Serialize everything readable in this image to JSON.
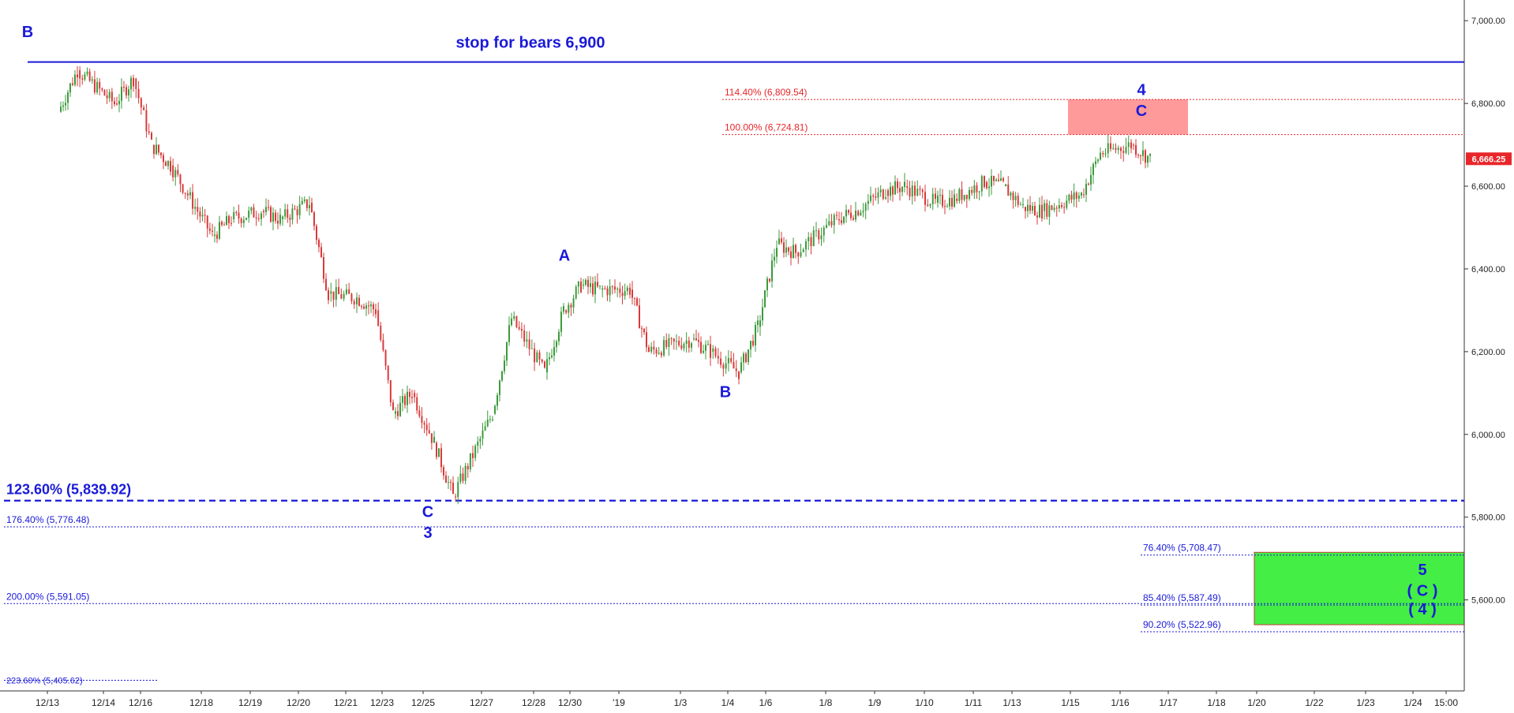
{
  "chart_data": {
    "type": "candlestick",
    "title": "",
    "xlabel": "",
    "ylabel": "",
    "ylim": [
      5380,
      7050
    ],
    "y_ticks": [
      {
        "value": 7000,
        "label": "7,000.00"
      },
      {
        "value": 6800,
        "label": "6,800.00"
      },
      {
        "value": 6600,
        "label": "6,600.00"
      },
      {
        "value": 6400,
        "label": "6,400.00"
      },
      {
        "value": 6200,
        "label": "6,200.00"
      },
      {
        "value": 6000,
        "label": "6,000.00"
      },
      {
        "value": 5800,
        "label": "5,800.00"
      },
      {
        "value": 5600,
        "label": "5,600.00"
      }
    ],
    "x_ticks": [
      "12/13",
      "12/14",
      "12/16",
      "12/18",
      "12/19",
      "12/20",
      "12/21",
      "12/23",
      "12/25",
      "12/27",
      "12/28",
      "12/30",
      "'19",
      "1/3",
      "1/4",
      "1/6",
      "1/8",
      "1/9",
      "1/10",
      "1/11",
      "1/13",
      "1/15",
      "1/16",
      "1/17",
      "1/18",
      "1/20",
      "1/22",
      "1/23",
      "1/24",
      "15:00"
    ],
    "last_price": {
      "value": 6666.25,
      "label": "6,666.25",
      "color": "#e8262a"
    },
    "price_path": [
      {
        "x": "12/13",
        "y": 6780
      },
      {
        "x": "12/13",
        "y": 6880
      },
      {
        "x": "12/14",
        "y": 6800
      },
      {
        "x": "12/14",
        "y": 6860
      },
      {
        "x": "12/16",
        "y": 6700
      },
      {
        "x": "12/16",
        "y": 6650
      },
      {
        "x": "12/18",
        "y": 6480
      },
      {
        "x": "12/18",
        "y": 6520
      },
      {
        "x": "12/19",
        "y": 6540
      },
      {
        "x": "12/19",
        "y": 6520
      },
      {
        "x": "12/20",
        "y": 6560
      },
      {
        "x": "12/20",
        "y": 6340
      },
      {
        "x": "12/21",
        "y": 6330
      },
      {
        "x": "12/21",
        "y": 6300
      },
      {
        "x": "12/23",
        "y": 6050
      },
      {
        "x": "12/23",
        "y": 6100
      },
      {
        "x": "12/25",
        "y": 5980
      },
      {
        "x": "12/25",
        "y": 5850
      },
      {
        "x": "12/27",
        "y": 6050
      },
      {
        "x": "12/27",
        "y": 6280
      },
      {
        "x": "12/28",
        "y": 6150
      },
      {
        "x": "12/28",
        "y": 6300
      },
      {
        "x": "12/30",
        "y": 6360
      },
      {
        "x": "12/30",
        "y": 6350
      },
      {
        "x": "'19",
        "y": 6350
      },
      {
        "x": "'19",
        "y": 6200
      },
      {
        "x": "1/3",
        "y": 6230
      },
      {
        "x": "1/3",
        "y": 6200
      },
      {
        "x": "1/4",
        "y": 6150
      },
      {
        "x": "1/4",
        "y": 6260
      },
      {
        "x": "1/6",
        "y": 6460
      },
      {
        "x": "1/6",
        "y": 6440
      },
      {
        "x": "1/8",
        "y": 6520
      },
      {
        "x": "1/8",
        "y": 6540
      },
      {
        "x": "1/9",
        "y": 6590
      },
      {
        "x": "1/9",
        "y": 6600
      },
      {
        "x": "1/10",
        "y": 6560
      },
      {
        "x": "1/10",
        "y": 6570
      },
      {
        "x": "1/11",
        "y": 6610
      },
      {
        "x": "1/11",
        "y": 6600
      },
      {
        "x": "1/13",
        "y": 6550
      },
      {
        "x": "1/13",
        "y": 6540
      },
      {
        "x": "1/15",
        "y": 6580
      },
      {
        "x": "1/15",
        "y": 6680
      },
      {
        "x": "1/16",
        "y": 6700
      },
      {
        "x": "1/16",
        "y": 6666.25
      }
    ],
    "overlay_lines": [
      {
        "value": 6900,
        "style": "solid",
        "color": "#1a1ad8",
        "label": "stop for bears 6,900"
      },
      {
        "value": 6809.54,
        "style": "dotted",
        "color": "#e8262a",
        "label": "114.40% (6,809.54)"
      },
      {
        "value": 6724.81,
        "style": "dotted",
        "color": "#e8262a",
        "label": "100.00% (6,724.81)"
      },
      {
        "value": 5839.92,
        "style": "dashed-bold",
        "color": "#1a1ad8",
        "label": "123.60% (5,839.92)"
      },
      {
        "value": 5776.48,
        "style": "dotted",
        "color": "#1a1ad8",
        "label": "176.40% (5,776.48)"
      },
      {
        "value": 5591.05,
        "style": "dotted",
        "color": "#1a1ad8",
        "label": "200.00% (5,591.05)"
      },
      {
        "value": 5708.47,
        "style": "dotted",
        "color": "#1a1ad8",
        "label": "76.40% (5,708.47)"
      },
      {
        "value": 5587.49,
        "style": "dotted",
        "color": "#1a1ad8",
        "label": "85.40% (5,587.49)"
      },
      {
        "value": 5522.96,
        "style": "dotted",
        "color": "#1a1ad8",
        "label": "90.20% (5,522.96)"
      },
      {
        "value": 5405.62,
        "style": "dotted",
        "color": "#1a1ad8",
        "label": "223.60% (5,405.62)"
      }
    ],
    "zones": [
      {
        "name": "target-zone-4",
        "from_x": "1/15",
        "to_x": "1/17",
        "y_low": 6724.81,
        "y_high": 6809.54,
        "color": "#ff9a9a"
      },
      {
        "name": "target-zone-5",
        "from_x": "1/20",
        "to_x": "15:00",
        "y_low": 5540,
        "y_high": 5715,
        "color": "#44ee44"
      }
    ],
    "wave_labels": [
      {
        "text": "B",
        "x": "12/13",
        "y": 6960
      },
      {
        "text": "A",
        "x": "12/30",
        "y": 6420
      },
      {
        "text": "B",
        "x": "1/4",
        "y": 6090
      },
      {
        "text": "C",
        "x": "12/25",
        "y": 5800
      },
      {
        "text": "3",
        "x": "12/25",
        "y": 5750
      },
      {
        "text": "4",
        "x": "1/16",
        "y": 6820
      },
      {
        "text": "C",
        "x": "1/16",
        "y": 6770
      },
      {
        "text": "5",
        "x": "1/24",
        "y": 5660
      },
      {
        "text": "( C )",
        "x": "1/24",
        "y": 5610
      },
      {
        "text": "( 4 )",
        "x": "1/24",
        "y": 5565
      }
    ],
    "colors": {
      "up": "#3c9a3c",
      "down": "#d83a3a",
      "annotation": "#1a1ad8",
      "fib_red": "#e8262a"
    }
  }
}
